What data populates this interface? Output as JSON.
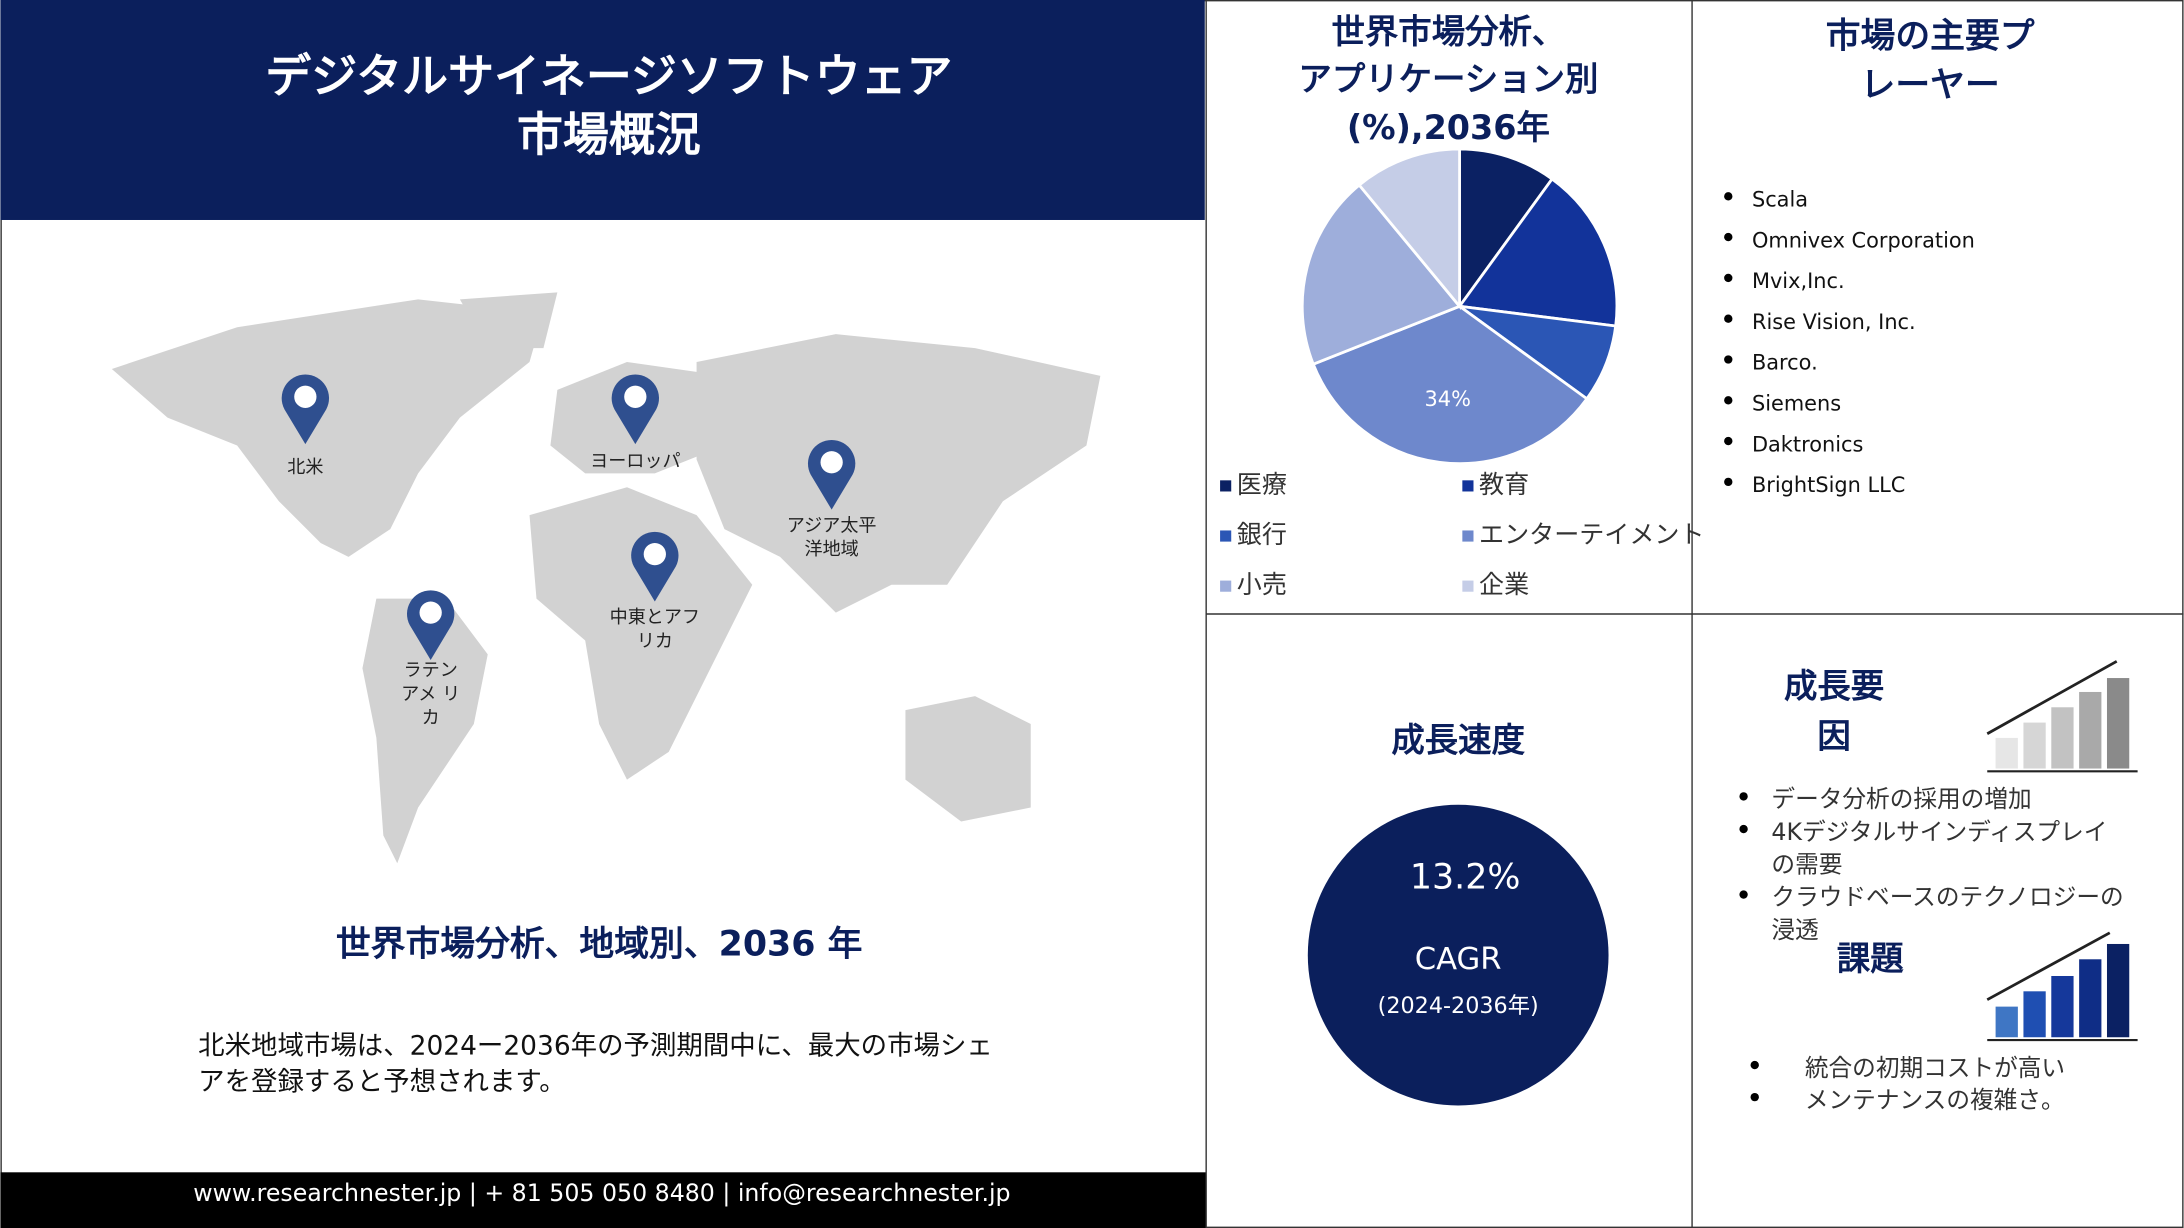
{
  "header": {
    "title_lines": [
      "デジタルサイネージソフトウェア",
      "市場概況"
    ]
  },
  "map": {
    "regions": [
      {
        "lines": [
          "北米"
        ]
      },
      {
        "lines": [
          "ヨーロッパ"
        ]
      },
      {
        "lines": [
          "アジア太平",
          "洋地域"
        ]
      },
      {
        "lines": [
          "中東とアフ",
          "リカ"
        ]
      },
      {
        "lines": [
          "ラテン",
          "アメ リ",
          "カ"
        ]
      }
    ],
    "title": "世界市場分析、地域別、2036 年",
    "note_lines": [
      "北米地域市場は、2024ー2036年の予測期間中に、最大の市場シェ",
      "アを登録すると予想されます。"
    ]
  },
  "footer": "www.researchnester.jp | + 81 505 050 8480 | info@researchnester.jp",
  "chart_data": {
    "type": "pie",
    "title_lines": [
      "世界市場分析、",
      "アプリケーション別",
      "(%),2036年"
    ],
    "categories": [
      "医療",
      "教育",
      "銀行",
      "エンターテイメント",
      "小売",
      "企業"
    ],
    "values": [
      10,
      17,
      8,
      34,
      20,
      11
    ],
    "value_labels": [
      null,
      null,
      null,
      "34%",
      null,
      null
    ],
    "colors": [
      "#0b2163",
      "#12339a",
      "#2b56b5",
      "#6e88cc",
      "#9eaedb",
      "#c5cde7"
    ]
  },
  "players": {
    "title_lines": [
      "市場の主要プ",
      "レーヤー"
    ],
    "items": [
      "Scala",
      "Omnivex Corporation",
      "Mvix,Inc.",
      "Rise Vision, Inc.",
      "Barco.",
      "Siemens",
      "Daktronics",
      "BrightSign LLC"
    ]
  },
  "growth_rate": {
    "title": "成長速度",
    "value": "13.2%",
    "label": "CAGR",
    "period": "(2024-2036年)"
  },
  "drivers": {
    "title_lines": [
      "成長要",
      "因"
    ],
    "items": [
      [
        "データ分析の採用の増加"
      ],
      [
        "4Kデジタルサインディスプレイ",
        "の需要"
      ],
      [
        "クラウドベースのテクノロジーの",
        "浸透"
      ]
    ]
  },
  "challenges": {
    "title": "課題",
    "items": [
      [
        "統合の初期コストが高い"
      ],
      [
        "メンテナンスの複雑さ。"
      ]
    ]
  }
}
